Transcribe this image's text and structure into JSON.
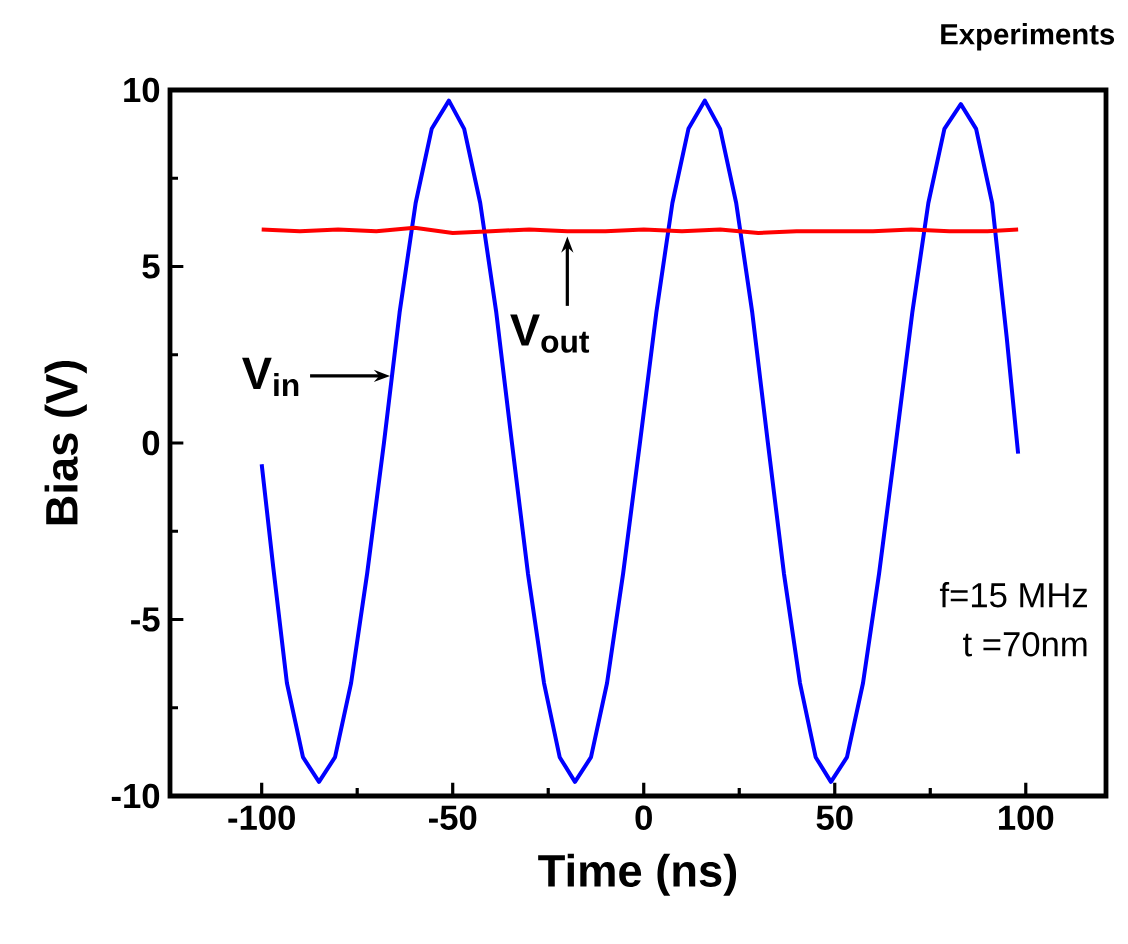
{
  "chart_data": {
    "type": "line",
    "title": "Experiments",
    "xlabel": "Time (ns)",
    "ylabel": "Bias  (V)",
    "xlim": [
      -124,
      121
    ],
    "ylim": [
      -10,
      10
    ],
    "xticks": [
      -100,
      -50,
      0,
      50,
      100
    ],
    "yticks": [
      -10,
      -5,
      0,
      5,
      10
    ],
    "series": [
      {
        "color": "#0000ff",
        "x": [
          -100,
          -97,
          -93.4,
          -89.2,
          -85,
          -80.8,
          -76.6,
          -72.4,
          -68,
          -63.9,
          -59.7,
          -55.5,
          -51,
          -47,
          -42.8,
          -38.6,
          -34.5,
          -30.3,
          -26.1,
          -22,
          -18,
          -13.8,
          -9.6,
          -5.4,
          -1,
          3.3,
          7.5,
          11.7,
          16,
          20,
          24.2,
          28.4,
          32.5,
          36.7,
          40.9,
          45,
          49,
          53.2,
          57.4,
          61.6,
          66,
          70.3,
          74.5,
          78.7,
          83,
          87,
          91.2,
          95,
          98
        ],
        "values": [
          -0.6,
          -3.5,
          -6.8,
          -8.9,
          -9.6,
          -8.9,
          -6.8,
          -3.7,
          0,
          3.7,
          6.8,
          8.9,
          9.7,
          8.9,
          6.8,
          3.7,
          0,
          -3.7,
          -6.8,
          -8.9,
          -9.6,
          -8.9,
          -6.8,
          -3.7,
          0,
          3.7,
          6.8,
          8.9,
          9.7,
          8.9,
          6.8,
          3.7,
          0,
          -3.7,
          -6.8,
          -8.9,
          -9.6,
          -8.9,
          -6.8,
          -3.7,
          0,
          3.7,
          6.8,
          8.9,
          9.6,
          8.9,
          6.8,
          3.0,
          -0.3
        ]
      },
      {
        "color": "#ff0000",
        "x": [
          -100,
          -90,
          -80,
          -70,
          -60,
          -50,
          -40,
          -30,
          -20,
          -10,
          0,
          10,
          20,
          30,
          40,
          50,
          60,
          70,
          80,
          90,
          98
        ],
        "values": [
          6.05,
          6.0,
          6.05,
          6.0,
          6.1,
          5.95,
          6.0,
          6.05,
          6.0,
          6.0,
          6.05,
          6.0,
          6.05,
          5.95,
          6.0,
          6.0,
          6.0,
          6.05,
          6.0,
          6.0,
          6.05
        ]
      }
    ],
    "annotations": [
      {
        "text": "V$_{in}$",
        "x": -65,
        "y": 1.9
      },
      {
        "text": "V$_{out}$",
        "x": -20,
        "y": 6.0
      },
      "f=15 MHz",
      "t =70nm"
    ]
  }
}
